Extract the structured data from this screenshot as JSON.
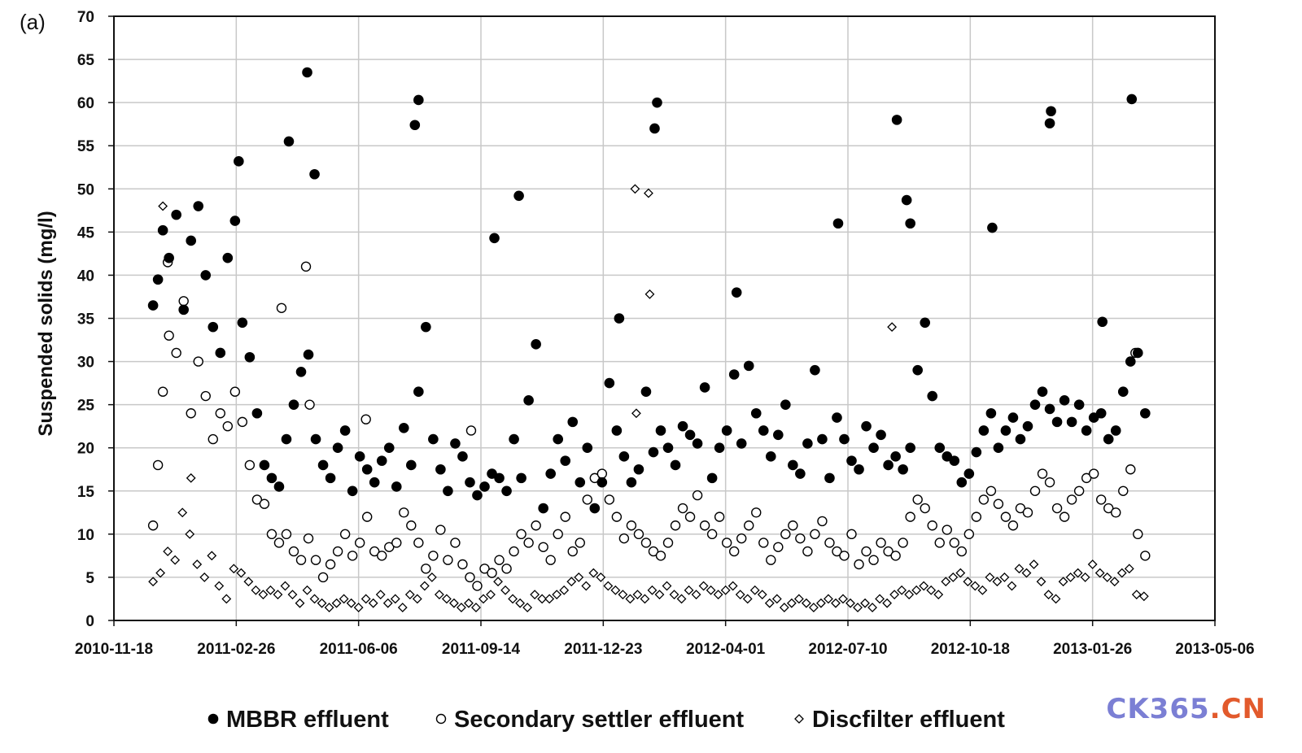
{
  "panel_label": "(a)",
  "watermark": {
    "text_main": "CK365",
    "text_dot": ".",
    "text_tld": "CN",
    "color_main": "#7b7fd4",
    "color_dot": "#e25a2c",
    "color_tld": "#e25a2c"
  },
  "chart_data": {
    "type": "scatter",
    "title": "",
    "xlabel": "",
    "ylabel": "Suspended solids (mg/l)",
    "xlim": [
      "2010-11-18",
      "2013-05-06"
    ],
    "ylim": [
      0,
      70
    ],
    "x_ticks": [
      "2010-11-18",
      "2011-02-26",
      "2011-06-06",
      "2011-09-14",
      "2011-12-23",
      "2012-04-01",
      "2012-07-10",
      "2012-10-18",
      "2013-01-26",
      "2013-05-06"
    ],
    "y_ticks": [
      0,
      5,
      10,
      15,
      20,
      25,
      30,
      35,
      40,
      45,
      50,
      55,
      60,
      65,
      70
    ],
    "grid": true,
    "legend_position": "bottom",
    "series": [
      {
        "name": "MBBR effluent",
        "marker": "filled-circle",
        "x": [
          "2010-12-20",
          "2010-12-24",
          "2010-12-28",
          "2011-01-02",
          "2011-01-08",
          "2011-01-14",
          "2011-01-20",
          "2011-01-26",
          "2011-02-01",
          "2011-02-07",
          "2011-02-13",
          "2011-02-19",
          "2011-02-25",
          "2011-03-03",
          "2011-03-09",
          "2011-03-15",
          "2011-03-21",
          "2011-03-27",
          "2011-04-02",
          "2011-04-08",
          "2011-04-14",
          "2011-04-20",
          "2011-04-26",
          "2011-05-02",
          "2011-05-08",
          "2011-05-14",
          "2011-05-20",
          "2011-05-26",
          "2011-06-01",
          "2011-06-07",
          "2011-06-13",
          "2011-06-19",
          "2011-06-25",
          "2011-07-01",
          "2011-07-07",
          "2011-07-13",
          "2011-07-19",
          "2011-07-25",
          "2011-07-31",
          "2011-08-06",
          "2011-08-12",
          "2011-08-18",
          "2011-08-24",
          "2011-08-30",
          "2011-09-05",
          "2011-09-11",
          "2011-09-17",
          "2011-09-23",
          "2011-09-29",
          "2011-10-05",
          "2011-10-11",
          "2011-10-17",
          "2011-10-23",
          "2011-10-29",
          "2011-11-04",
          "2011-11-10",
          "2011-11-16",
          "2011-11-22",
          "2011-11-28",
          "2011-12-04",
          "2011-12-10",
          "2011-12-16",
          "2011-12-22",
          "2011-12-28",
          "2012-01-03",
          "2012-01-09",
          "2012-01-15",
          "2012-01-21",
          "2012-01-27",
          "2012-02-02",
          "2012-02-08",
          "2012-02-14",
          "2012-02-20",
          "2012-02-26",
          "2012-03-03",
          "2012-03-09",
          "2012-03-15",
          "2012-03-21",
          "2012-03-27",
          "2012-04-02",
          "2012-04-08",
          "2012-04-14",
          "2012-04-20",
          "2012-04-26",
          "2012-05-02",
          "2012-05-08",
          "2012-05-14",
          "2012-05-20",
          "2012-05-26",
          "2012-06-01",
          "2012-06-07",
          "2012-06-13",
          "2012-06-19",
          "2012-06-25",
          "2012-07-01",
          "2012-07-07",
          "2012-07-13",
          "2012-07-19",
          "2012-07-25",
          "2012-07-31",
          "2012-08-06",
          "2012-08-12",
          "2012-08-18",
          "2012-08-24",
          "2012-08-30",
          "2012-09-05",
          "2012-09-11",
          "2012-09-17",
          "2012-09-23",
          "2012-09-29",
          "2012-10-05",
          "2012-10-11",
          "2012-10-17",
          "2012-10-23",
          "2012-10-29",
          "2012-11-04",
          "2012-11-10",
          "2012-11-16",
          "2012-11-22",
          "2012-11-28",
          "2012-12-04",
          "2012-12-10",
          "2012-12-16",
          "2012-12-22",
          "2012-12-28",
          "2013-01-03",
          "2013-01-09",
          "2013-01-15",
          "2013-01-21",
          "2013-01-27",
          "2013-02-02",
          "2013-02-08",
          "2013-02-14",
          "2013-02-20",
          "2013-02-26",
          "2013-03-04",
          "2013-03-10",
          "2011-02-28",
          "2011-04-10",
          "2011-04-25",
          "2011-07-22",
          "2011-07-25",
          "2011-09-25",
          "2011-10-15",
          "2012-02-03",
          "2012-02-05",
          "2012-04-10",
          "2012-07-02",
          "2012-08-19",
          "2012-08-27",
          "2012-08-30",
          "2012-11-05",
          "2012-12-22",
          "2012-12-23",
          "2013-02-03",
          "2013-02-27",
          "2012-01-05",
          "2011-05-01"
        ],
        "y": [
          36.5,
          39.5,
          45.2,
          42.0,
          47.0,
          36.0,
          44.0,
          48.0,
          40.0,
          34.0,
          31.0,
          42.0,
          46.3,
          34.5,
          30.5,
          24.0,
          18.0,
          16.5,
          15.5,
          21.0,
          25.0,
          28.8,
          30.8,
          21.0,
          18.0,
          16.5,
          20.0,
          22.0,
          15.0,
          19.0,
          17.5,
          16.0,
          18.5,
          20.0,
          15.5,
          22.3,
          18.0,
          26.5,
          34.0,
          21.0,
          17.5,
          15.0,
          20.5,
          19.0,
          16.0,
          14.5,
          15.5,
          17.0,
          16.5,
          15.0,
          21.0,
          16.5,
          25.5,
          32.0,
          13.0,
          17.0,
          21.0,
          18.5,
          23.0,
          16.0,
          20.0,
          13.0,
          16.0,
          27.5,
          22.0,
          19.0,
          16.0,
          17.5,
          26.5,
          19.5,
          22.0,
          20.0,
          18.0,
          22.5,
          21.5,
          20.5,
          27.0,
          16.5,
          20.0,
          22.0,
          28.5,
          20.5,
          29.5,
          24.0,
          22.0,
          19.0,
          21.5,
          25.0,
          18.0,
          17.0,
          20.5,
          29.0,
          21.0,
          16.5,
          23.5,
          21.0,
          18.5,
          17.5,
          22.5,
          20.0,
          21.5,
          18.0,
          19.0,
          17.5,
          20.0,
          29.0,
          34.5,
          26.0,
          20.0,
          19.0,
          18.5,
          16.0,
          17.0,
          19.5,
          22.0,
          24.0,
          20.0,
          22.0,
          23.5,
          21.0,
          22.5,
          25.0,
          26.5,
          24.5,
          23.0,
          25.5,
          23.0,
          25.0,
          22.0,
          23.5,
          24.0,
          21.0,
          22.0,
          26.5,
          30.0,
          31.0,
          24.0,
          53.2,
          55.5,
          63.5,
          57.4,
          60.3,
          44.3,
          49.2,
          57.0,
          60.0,
          38.0,
          46.0,
          58.0,
          48.7,
          46.0,
          45.5,
          57.6,
          59.0,
          34.6,
          60.4,
          35.0,
          51.7
        ]
      },
      {
        "name": "Secondary settler effluent",
        "marker": "open-circle",
        "x": [
          "2010-12-20",
          "2010-12-24",
          "2010-12-28",
          "2011-01-02",
          "2011-01-08",
          "2011-01-14",
          "2011-01-20",
          "2011-01-26",
          "2011-02-01",
          "2011-02-07",
          "2011-02-13",
          "2011-02-19",
          "2011-02-25",
          "2011-03-03",
          "2011-03-09",
          "2011-03-15",
          "2011-03-21",
          "2011-03-27",
          "2011-04-02",
          "2011-04-08",
          "2011-04-14",
          "2011-04-20",
          "2011-04-26",
          "2011-05-02",
          "2011-05-08",
          "2011-05-14",
          "2011-05-20",
          "2011-05-26",
          "2011-06-01",
          "2011-06-07",
          "2011-06-13",
          "2011-06-19",
          "2011-06-25",
          "2011-07-01",
          "2011-07-07",
          "2011-07-13",
          "2011-07-19",
          "2011-07-25",
          "2011-07-31",
          "2011-08-06",
          "2011-08-12",
          "2011-08-18",
          "2011-08-24",
          "2011-08-30",
          "2011-09-05",
          "2011-09-11",
          "2011-09-17",
          "2011-09-23",
          "2011-09-29",
          "2011-10-05",
          "2011-10-11",
          "2011-10-17",
          "2011-10-23",
          "2011-10-29",
          "2011-11-04",
          "2011-11-10",
          "2011-11-16",
          "2011-11-22",
          "2011-11-28",
          "2011-12-04",
          "2011-12-10",
          "2011-12-16",
          "2011-12-22",
          "2011-12-28",
          "2012-01-03",
          "2012-01-09",
          "2012-01-15",
          "2012-01-21",
          "2012-01-27",
          "2012-02-02",
          "2012-02-08",
          "2012-02-14",
          "2012-02-20",
          "2012-02-26",
          "2012-03-03",
          "2012-03-09",
          "2012-03-15",
          "2012-03-21",
          "2012-03-27",
          "2012-04-02",
          "2012-04-08",
          "2012-04-14",
          "2012-04-20",
          "2012-04-26",
          "2012-05-02",
          "2012-05-08",
          "2012-05-14",
          "2012-05-20",
          "2012-05-26",
          "2012-06-01",
          "2012-06-07",
          "2012-06-13",
          "2012-06-19",
          "2012-06-25",
          "2012-07-01",
          "2012-07-07",
          "2012-07-13",
          "2012-07-19",
          "2012-07-25",
          "2012-07-31",
          "2012-08-06",
          "2012-08-12",
          "2012-08-18",
          "2012-08-24",
          "2012-08-30",
          "2012-09-05",
          "2012-09-11",
          "2012-09-17",
          "2012-09-23",
          "2012-09-29",
          "2012-10-05",
          "2012-10-11",
          "2012-10-17",
          "2012-10-23",
          "2012-10-29",
          "2012-11-04",
          "2012-11-10",
          "2012-11-16",
          "2012-11-22",
          "2012-11-28",
          "2012-12-04",
          "2012-12-10",
          "2012-12-16",
          "2012-12-22",
          "2012-12-28",
          "2013-01-03",
          "2013-01-09",
          "2013-01-15",
          "2013-01-21",
          "2013-01-27",
          "2013-02-02",
          "2013-02-08",
          "2013-02-14",
          "2013-02-20",
          "2013-02-26",
          "2013-03-04",
          "2013-03-10",
          "2011-01-01",
          "2011-04-04",
          "2011-04-24",
          "2011-04-27",
          "2011-06-12",
          "2011-09-06",
          "2013-03-02"
        ],
        "y": [
          11.0,
          18.0,
          26.5,
          33.0,
          31.0,
          37.0,
          24.0,
          30.0,
          26.0,
          21.0,
          24.0,
          22.5,
          26.5,
          23.0,
          18.0,
          14.0,
          13.5,
          10.0,
          9.0,
          10.0,
          8.0,
          7.0,
          9.5,
          7.0,
          5.0,
          6.5,
          8.0,
          10.0,
          7.5,
          9.0,
          12.0,
          8.0,
          7.5,
          8.5,
          9.0,
          12.5,
          11.0,
          9.0,
          6.0,
          7.5,
          10.5,
          7.0,
          9.0,
          6.5,
          5.0,
          4.0,
          6.0,
          5.5,
          7.0,
          6.0,
          8.0,
          10.0,
          9.0,
          11.0,
          8.5,
          7.0,
          10.0,
          12.0,
          8.0,
          9.0,
          14.0,
          16.5,
          17.0,
          14.0,
          12.0,
          9.5,
          11.0,
          10.0,
          9.0,
          8.0,
          7.5,
          9.0,
          11.0,
          13.0,
          12.0,
          14.5,
          11.0,
          10.0,
          12.0,
          9.0,
          8.0,
          9.5,
          11.0,
          12.5,
          9.0,
          7.0,
          8.5,
          10.0,
          11.0,
          9.5,
          8.0,
          10.0,
          11.5,
          9.0,
          8.0,
          7.5,
          10.0,
          6.5,
          8.0,
          7.0,
          9.0,
          8.0,
          7.5,
          9.0,
          12.0,
          14.0,
          13.0,
          11.0,
          9.0,
          10.5,
          9.0,
          8.0,
          10.0,
          12.0,
          14.0,
          15.0,
          13.5,
          12.0,
          11.0,
          13.0,
          12.5,
          15.0,
          17.0,
          16.0,
          13.0,
          12.0,
          14.0,
          15.0,
          16.5,
          17.0,
          14.0,
          13.0,
          12.5,
          15.0,
          17.5,
          10.0,
          7.5,
          41.5,
          36.2,
          41.0,
          25.0,
          23.3,
          22.0,
          31.0
        ]
      },
      {
        "name": "Discfilter effluent",
        "marker": "open-diamond",
        "x": [
          "2010-12-20",
          "2010-12-26",
          "2011-01-01",
          "2011-01-07",
          "2011-01-13",
          "2011-01-19",
          "2011-01-25",
          "2011-01-31",
          "2011-02-06",
          "2011-02-12",
          "2011-02-18",
          "2011-02-24",
          "2011-03-02",
          "2011-03-08",
          "2011-03-14",
          "2011-03-20",
          "2011-03-26",
          "2011-04-01",
          "2011-04-07",
          "2011-04-13",
          "2011-04-19",
          "2011-04-25",
          "2011-05-01",
          "2011-05-07",
          "2011-05-13",
          "2011-05-19",
          "2011-05-25",
          "2011-05-31",
          "2011-06-06",
          "2011-06-12",
          "2011-06-18",
          "2011-06-24",
          "2011-06-30",
          "2011-07-06",
          "2011-07-12",
          "2011-07-18",
          "2011-07-24",
          "2011-07-30",
          "2011-08-05",
          "2011-08-11",
          "2011-08-17",
          "2011-08-23",
          "2011-08-29",
          "2011-09-04",
          "2011-09-10",
          "2011-09-16",
          "2011-09-22",
          "2011-09-28",
          "2011-10-04",
          "2011-10-10",
          "2011-10-16",
          "2011-10-22",
          "2011-10-28",
          "2011-11-03",
          "2011-11-09",
          "2011-11-15",
          "2011-11-21",
          "2011-11-27",
          "2011-12-03",
          "2011-12-09",
          "2011-12-15",
          "2011-12-21",
          "2011-12-27",
          "2012-01-02",
          "2012-01-08",
          "2012-01-14",
          "2012-01-20",
          "2012-01-26",
          "2012-02-01",
          "2012-02-07",
          "2012-02-13",
          "2012-02-19",
          "2012-02-25",
          "2012-03-02",
          "2012-03-08",
          "2012-03-14",
          "2012-03-20",
          "2012-03-26",
          "2012-04-01",
          "2012-04-07",
          "2012-04-13",
          "2012-04-19",
          "2012-04-25",
          "2012-05-01",
          "2012-05-07",
          "2012-05-13",
          "2012-05-19",
          "2012-05-25",
          "2012-05-31",
          "2012-06-06",
          "2012-06-12",
          "2012-06-18",
          "2012-06-24",
          "2012-06-30",
          "2012-07-06",
          "2012-07-12",
          "2012-07-18",
          "2012-07-24",
          "2012-07-30",
          "2012-08-05",
          "2012-08-11",
          "2012-08-17",
          "2012-08-23",
          "2012-08-29",
          "2012-09-04",
          "2012-09-10",
          "2012-09-16",
          "2012-09-22",
          "2012-09-28",
          "2012-10-04",
          "2012-10-10",
          "2012-10-16",
          "2012-10-22",
          "2012-10-28",
          "2012-11-03",
          "2012-11-09",
          "2012-11-15",
          "2012-11-21",
          "2012-11-27",
          "2012-12-03",
          "2012-12-09",
          "2012-12-15",
          "2012-12-21",
          "2012-12-27",
          "2013-01-02",
          "2013-01-08",
          "2013-01-14",
          "2013-01-20",
          "2013-01-26",
          "2013-02-01",
          "2013-02-07",
          "2013-02-13",
          "2013-02-19",
          "2013-02-25",
          "2013-03-03",
          "2013-03-09",
          "2010-12-28",
          "2011-01-20",
          "2012-01-18",
          "2012-01-29",
          "2012-01-30",
          "2012-08-15",
          "2012-01-19"
        ],
        "y": [
          4.5,
          5.5,
          8.0,
          7.0,
          12.5,
          10.0,
          6.5,
          5.0,
          7.5,
          4.0,
          2.5,
          6.0,
          5.5,
          4.5,
          3.5,
          3.0,
          3.5,
          3.0,
          4.0,
          3.0,
          2.0,
          3.5,
          2.5,
          2.0,
          1.5,
          2.0,
          2.5,
          2.0,
          1.5,
          2.5,
          2.0,
          3.0,
          2.0,
          2.5,
          1.5,
          3.0,
          2.5,
          4.0,
          5.0,
          3.0,
          2.5,
          2.0,
          1.5,
          2.0,
          1.5,
          2.5,
          3.0,
          4.5,
          3.5,
          2.5,
          2.0,
          1.5,
          3.0,
          2.5,
          2.5,
          3.0,
          3.5,
          4.5,
          5.0,
          4.0,
          5.5,
          5.0,
          4.0,
          3.5,
          3.0,
          2.5,
          3.0,
          2.5,
          3.5,
          3.0,
          4.0,
          3.0,
          2.5,
          3.5,
          3.0,
          4.0,
          3.5,
          3.0,
          3.5,
          4.0,
          3.0,
          2.5,
          3.5,
          3.0,
          2.0,
          2.5,
          1.5,
          2.0,
          2.5,
          2.0,
          1.5,
          2.0,
          2.5,
          2.0,
          2.5,
          2.0,
          1.5,
          2.0,
          1.5,
          2.5,
          2.0,
          3.0,
          3.5,
          3.0,
          3.5,
          4.0,
          3.5,
          3.0,
          4.5,
          5.0,
          5.5,
          4.5,
          4.0,
          3.5,
          5.0,
          4.5,
          5.0,
          4.0,
          6.0,
          5.5,
          6.5,
          4.5,
          3.0,
          2.5,
          4.5,
          5.0,
          5.5,
          5.0,
          6.5,
          5.5,
          5.0,
          4.5,
          5.5,
          6.0,
          3.0,
          2.8,
          48.0,
          16.5,
          50.0,
          49.5,
          37.8,
          34.0,
          24.0
        ]
      }
    ]
  }
}
